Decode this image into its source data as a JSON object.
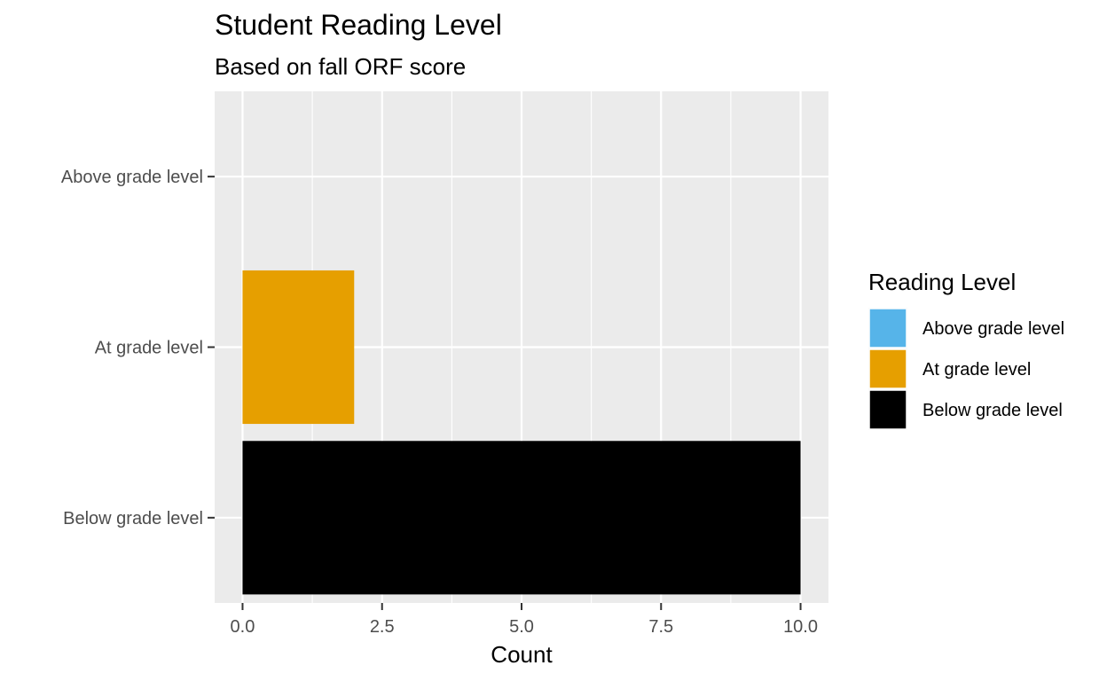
{
  "chart_data": {
    "type": "bar",
    "orientation": "horizontal",
    "title": "Student Reading Level",
    "subtitle": "Based on fall ORF score",
    "xlabel": "Count",
    "ylabel": "",
    "categories": [
      "Above grade level",
      "At grade level",
      "Below grade level"
    ],
    "values": [
      0,
      2,
      10
    ],
    "colors": [
      "#56B4E9",
      "#E69F00",
      "#000000"
    ],
    "xlim": [
      -0.5,
      10.5
    ],
    "xticks": [
      0,
      2.5,
      5,
      7.5,
      10
    ],
    "xtick_labels": [
      "0.0",
      "2.5",
      "5.0",
      "7.5",
      "10.0"
    ],
    "grid": true,
    "panel_background": "#EBEBEB",
    "legend": {
      "title": "Reading Level",
      "position": "right",
      "items": [
        "Above grade level",
        "At grade level",
        "Below grade level"
      ]
    }
  }
}
